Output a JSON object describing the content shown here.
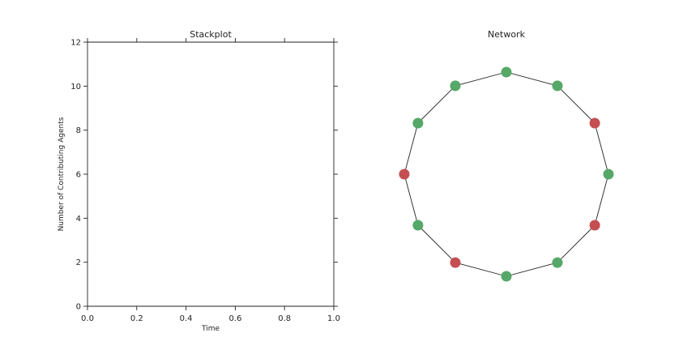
{
  "chart_data": [
    {
      "type": "area",
      "title": "Stackplot",
      "xlabel": "Time",
      "ylabel": "Number of Contributing Agents",
      "xlim": [
        0.0,
        1.0
      ],
      "ylim": [
        0,
        12
      ],
      "x_ticks": [
        "0.0",
        "0.2",
        "0.4",
        "0.6",
        "0.8",
        "1.0"
      ],
      "y_ticks": [
        "0",
        "2",
        "4",
        "6",
        "8",
        "10",
        "12"
      ],
      "series": [],
      "grid": false
    },
    {
      "type": "network",
      "title": "Network",
      "layout": "circular",
      "node_count": 12,
      "node_states": [
        "cooperator",
        "cooperator",
        "defector",
        "cooperator",
        "defector",
        "cooperator",
        "cooperator",
        "defector",
        "cooperator",
        "defector",
        "cooperator",
        "cooperator"
      ],
      "edges": [
        [
          0,
          1
        ],
        [
          1,
          2
        ],
        [
          2,
          3
        ],
        [
          3,
          4
        ],
        [
          4,
          5
        ],
        [
          5,
          6
        ],
        [
          6,
          7
        ],
        [
          7,
          8
        ],
        [
          8,
          9
        ],
        [
          9,
          10
        ],
        [
          10,
          11
        ],
        [
          11,
          0
        ]
      ],
      "colors": {
        "cooperator": "#55a868",
        "defector": "#c44e52",
        "edge": "#222222"
      }
    }
  ]
}
